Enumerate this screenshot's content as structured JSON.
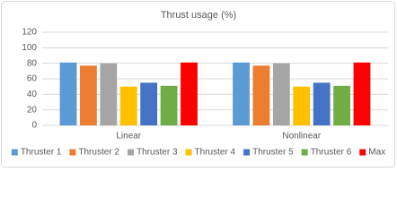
{
  "chart_data": {
    "type": "bar",
    "title": "Thrust usage (%)",
    "categories": [
      "Linear",
      "Nonlinear"
    ],
    "series": [
      {
        "name": "Thruster 1",
        "color": "#5b9bd5",
        "values": [
          81,
          81
        ]
      },
      {
        "name": "Thruster 2",
        "color": "#ed7d31",
        "values": [
          77,
          77
        ]
      },
      {
        "name": "Thruster 3",
        "color": "#a5a5a5",
        "values": [
          80,
          80
        ]
      },
      {
        "name": "Thruster 4",
        "color": "#ffc000",
        "values": [
          50,
          50
        ]
      },
      {
        "name": "Thruster 5",
        "color": "#4472c4",
        "values": [
          55,
          55
        ]
      },
      {
        "name": "Thruster 6",
        "color": "#70ad47",
        "values": [
          51,
          51
        ]
      },
      {
        "name": "Max",
        "color": "#ff0000",
        "values": [
          81,
          81
        ]
      }
    ],
    "ylim": [
      0,
      120
    ],
    "yticks": [
      0,
      20,
      40,
      60,
      80,
      100,
      120
    ],
    "grid": true,
    "legend": "bottom"
  }
}
